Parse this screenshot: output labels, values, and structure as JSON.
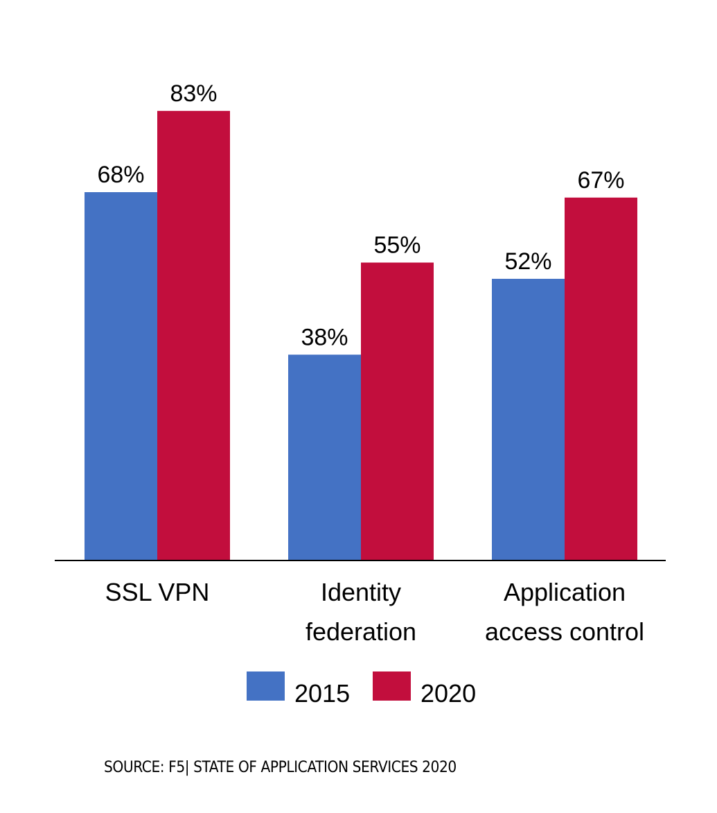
{
  "chart_data": {
    "type": "bar",
    "title": "",
    "xlabel": "",
    "ylabel": "",
    "ylim": [
      0,
      100
    ],
    "grid": false,
    "legend_position": "bottom",
    "categories": [
      [
        "SSL VPN"
      ],
      [
        "Identity",
        "federation"
      ],
      [
        "Application",
        "access control"
      ]
    ],
    "series": [
      {
        "name": "2015",
        "color": "#4472C4",
        "values": [
          68,
          38,
          52
        ],
        "labels": [
          "68%",
          "38%",
          "52%"
        ]
      },
      {
        "name": "2020",
        "color": "#C20E3D",
        "values": [
          83,
          55,
          67
        ],
        "labels": [
          "83%",
          "55%",
          "67%"
        ]
      }
    ]
  },
  "source": "SOURCE: F5| STATE OF APPLICATION SERVICES 2020"
}
